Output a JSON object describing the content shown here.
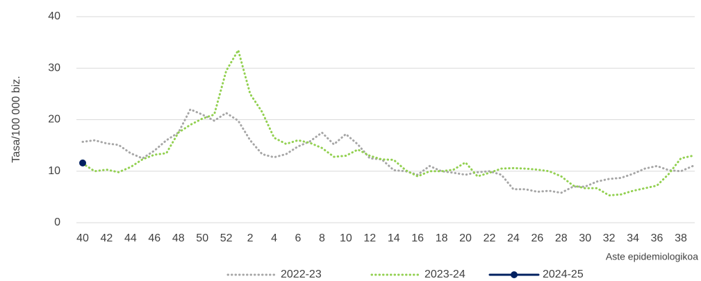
{
  "chart_data": {
    "type": "line",
    "y_label": "Tasa/100 000 biz.",
    "x_label": "Aste epidemiologikoa",
    "categories": [
      "40",
      null,
      "42",
      null,
      "44",
      null,
      "46",
      null,
      "48",
      null,
      "50",
      null,
      "52",
      null,
      "2",
      null,
      "4",
      null,
      "6",
      null,
      "8",
      null,
      "10",
      null,
      "12",
      null,
      "14",
      null,
      "16",
      null,
      "18",
      null,
      "20",
      null,
      "22",
      null,
      "24",
      null,
      "26",
      null,
      "28",
      null,
      "30",
      null,
      "32",
      null,
      "34",
      null,
      "36",
      null,
      "38",
      null
    ],
    "series": [
      {
        "name": "2022-23",
        "color": "#a6a6a6",
        "style": "dotted",
        "values": [
          15.7,
          16,
          15.4,
          15.1,
          13.5,
          12.5,
          14,
          16,
          17.5,
          22,
          21,
          19.8,
          21.3,
          19.8,
          16,
          13.3,
          12.7,
          13.3,
          14.8,
          15.8,
          17.5,
          15.2,
          17.2,
          15.2,
          12.5,
          12.3,
          10.2,
          10,
          9.3,
          11,
          10,
          9.7,
          9.3,
          9.8,
          10,
          9.3,
          6.5,
          6.5,
          6,
          6.2,
          5.8,
          7,
          7,
          8,
          8.5,
          8.7,
          9.5,
          10.5,
          11,
          10.2,
          10,
          11
        ]
      },
      {
        "name": "2023-24",
        "color": "#92d050",
        "style": "dotted",
        "values": [
          11.5,
          10,
          10.3,
          9.8,
          10.8,
          12.3,
          13.2,
          13.5,
          17.5,
          19,
          20.2,
          21,
          29.5,
          33.5,
          25,
          21.5,
          16.5,
          15.3,
          16,
          15.5,
          14.5,
          12.8,
          13,
          14.2,
          13,
          12.3,
          12.2,
          10.2,
          9,
          10,
          10,
          10.3,
          11.7,
          9,
          9.7,
          10.5,
          10.6,
          10.5,
          10.3,
          10,
          9,
          7.2,
          6.7,
          6.7,
          5.3,
          5.5,
          6.2,
          6.7,
          7.2,
          9.5,
          12.5,
          13
        ]
      },
      {
        "name": "2024-25",
        "color": "#002060",
        "style": "solid",
        "markers": true,
        "values": [
          11.6,
          null,
          null,
          null,
          null,
          null,
          null,
          null,
          null,
          null,
          null,
          null,
          null,
          null,
          null,
          null,
          null,
          null,
          null,
          null,
          null,
          null,
          null,
          null,
          null,
          null,
          null,
          null,
          null,
          null,
          null,
          null,
          null,
          null,
          null,
          null,
          null,
          null,
          null,
          null,
          null,
          null,
          null,
          null,
          null,
          null,
          null,
          null,
          null,
          null,
          null,
          null
        ]
      }
    ],
    "ylim": [
      0,
      40
    ],
    "yticks": [
      0,
      10,
      20,
      30,
      40
    ],
    "grid": true,
    "legend": "bottom"
  }
}
